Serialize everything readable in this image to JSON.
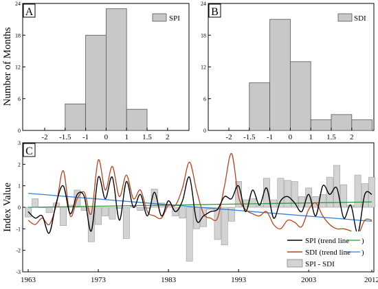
{
  "chart_data": [
    {
      "type": "bar",
      "panel_label": "A",
      "ylabel": "Number of Months",
      "legend": "SPI",
      "yticks": [
        0,
        6,
        12,
        18,
        24
      ],
      "ylim": [
        0,
        24
      ],
      "xticks": [
        "-2",
        "-1.5",
        "-1",
        "0",
        "1",
        "1.5",
        "2"
      ],
      "bins": [
        {
          "from": -1.5,
          "to": -1,
          "value": 5
        },
        {
          "from": -1,
          "to": 0,
          "value": 18
        },
        {
          "from": 0,
          "to": 1,
          "value": 23
        },
        {
          "from": 1,
          "to": 1.5,
          "value": 4
        }
      ],
      "bar_color": "#c8c8c8"
    },
    {
      "type": "bar",
      "panel_label": "B",
      "legend": "SDI",
      "yticks": [
        0,
        6,
        12,
        18,
        24
      ],
      "ylim": [
        0,
        24
      ],
      "xticks": [
        "-2",
        "-1.5",
        "-1",
        "0",
        "1",
        "1.5",
        "2"
      ],
      "bins": [
        {
          "from": -1.5,
          "to": -1,
          "value": 9
        },
        {
          "from": -1,
          "to": 0,
          "value": 21
        },
        {
          "from": 0,
          "to": 1,
          "value": 13
        },
        {
          "from": 1,
          "to": 1.5,
          "value": 2
        },
        {
          "from": 1.5,
          "to": 2,
          "value": 3
        },
        {
          "from": 2,
          "to": 2.5,
          "value": 2
        }
      ],
      "bar_color": "#c8c8c8"
    },
    {
      "type": "line",
      "panel_label": "C",
      "ylabel": "Index Value",
      "xlim": [
        1963,
        2012
      ],
      "ylim": [
        -3,
        3
      ],
      "xticks": [
        "1963",
        "1973",
        "1983",
        "1993",
        "2003",
        "2012"
      ],
      "yticks": [
        "-3",
        "-2",
        "-1",
        "0",
        "1",
        "2",
        "3"
      ],
      "legend_entries": [
        {
          "label": "SPI (trend line",
          "suffix": ")",
          "line_color": "#000000",
          "trend_color": "#2e9e3e"
        },
        {
          "label": "SDI (trend line",
          "suffix": ")",
          "line_color": "#b5441c",
          "trend_color": "#2f7fd6"
        },
        {
          "label": "SPI - SDI",
          "fill_color": "#d3d3d3"
        }
      ],
      "years": [
        1963,
        1964,
        1965,
        1966,
        1967,
        1968,
        1969,
        1970,
        1971,
        1972,
        1973,
        1974,
        1975,
        1976,
        1977,
        1978,
        1979,
        1980,
        1981,
        1982,
        1983,
        1984,
        1985,
        1986,
        1987,
        1988,
        1989,
        1990,
        1991,
        1992,
        1993,
        1994,
        1995,
        1996,
        1997,
        1998,
        1999,
        2000,
        2001,
        2002,
        2003,
        2004,
        2005,
        2006,
        2007,
        2008,
        2009,
        2010,
        2011,
        2012
      ],
      "spi": [
        -0.2,
        -0.5,
        -0.4,
        -1.2,
        0.2,
        1.0,
        -0.3,
        0.6,
        0.5,
        -1.1,
        1.4,
        0.4,
        1.4,
        -0.6,
        1.2,
        0.0,
        0.6,
        -0.4,
        0.7,
        -0.4,
        0.3,
        -0.2,
        0.3,
        1.4,
        -0.6,
        -0.4,
        -0.2,
        -0.1,
        0.5,
        0.4,
        1.0,
        -0.2,
        0.8,
        0.1,
        0.9,
        -0.5,
        0.3,
        0.5,
        0.2,
        -0.2,
        0.6,
        -0.4,
        1.0,
        0.6,
        0.9,
        -0.5,
        0.1,
        -1.2,
        0.6,
        0.6
      ],
      "sdi": [
        -0.6,
        -0.8,
        -0.5,
        -0.8,
        0.1,
        1.7,
        -0.4,
        0.4,
        0.7,
        -0.3,
        2.2,
        0.8,
        1.9,
        0.5,
        1.5,
        0.4,
        0.8,
        -0.2,
        -0.4,
        -0.5,
        0.1,
        0.1,
        0.9,
        2.1,
        0.8,
        -0.3,
        -0.5,
        -0.5,
        1.0,
        2.5,
        0.5,
        -0.1,
        -0.3,
        -0.4,
        -0.2,
        -0.8,
        -1.0,
        -0.6,
        -0.7,
        -0.9,
        -0.1,
        0.2,
        -0.4,
        -0.8,
        -1.0,
        -1.0,
        -1.1,
        -1.3,
        -0.6,
        -0.6
      ],
      "diff": [
        -0.45,
        0.4,
        0.0,
        -0.25,
        0.2,
        -0.85,
        0.1,
        0.8,
        -0.15,
        -1.6,
        -0.8,
        -0.4,
        -0.55,
        -0.05,
        -1.45,
        0.05,
        -0.15,
        -0.05,
        0.85,
        0.2,
        0.15,
        -0.4,
        -0.5,
        -2.5,
        -1.0,
        -0.9,
        -0.1,
        -1.5,
        -1.75,
        -0.65,
        1.2,
        0.35,
        0.4,
        0.1,
        1.35,
        0.35,
        1.35,
        1.25,
        1.2,
        0.5,
        0.9,
        0.5,
        0.6,
        1.4,
        1.95,
        1.05,
        0.1,
        1.5,
        1.1,
        1.4
      ],
      "trend_spi": [
        0.0,
        0.25
      ],
      "trend_sdi": [
        0.65,
        -0.65
      ]
    }
  ]
}
